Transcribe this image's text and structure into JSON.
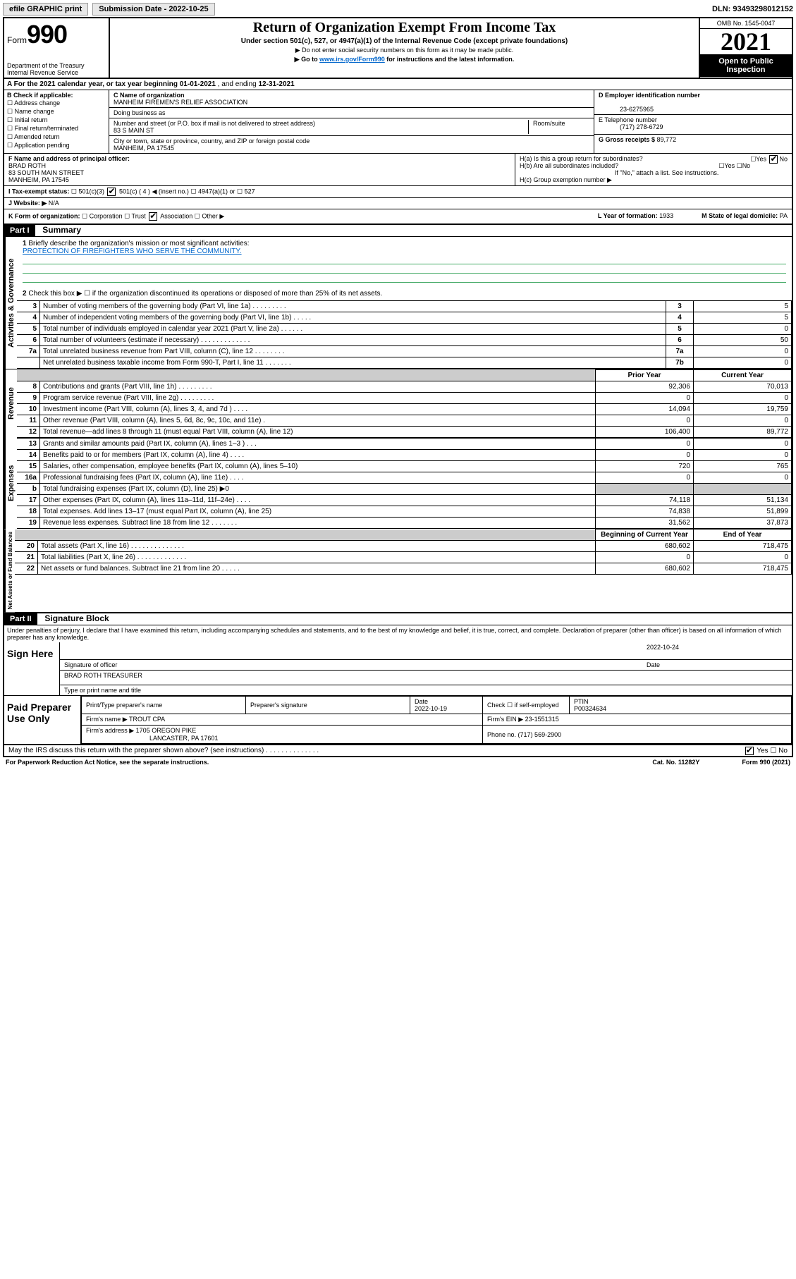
{
  "top": {
    "efile": "efile GRAPHIC print",
    "submission": "Submission Date - 2022-10-25",
    "dln": "DLN: 93493298012152"
  },
  "header": {
    "form": "Form",
    "formnum": "990",
    "dept": "Department of the Treasury",
    "irs": "Internal Revenue Service",
    "title": "Return of Organization Exempt From Income Tax",
    "sub1": "Under section 501(c), 527, or 4947(a)(1) of the Internal Revenue Code (except private foundations)",
    "sub2": "▶ Do not enter social security numbers on this form as it may be made public.",
    "sub3_pre": "▶ Go to ",
    "sub3_link": "www.irs.gov/Form990",
    "sub3_post": " for instructions and the latest information.",
    "omb": "OMB No. 1545-0047",
    "year": "2021",
    "inspection": "Open to Public Inspection"
  },
  "a": {
    "label": "A For the 2021 calendar year, or tax year beginning ",
    "begin": "01-01-2021",
    "mid": " , and ending ",
    "end": "12-31-2021"
  },
  "b": {
    "label": "B Check if applicable:",
    "opts": [
      "Address change",
      "Name change",
      "Initial return",
      "Final return/terminated",
      "Amended return",
      "Application pending"
    ]
  },
  "c": {
    "name_label": "C Name of organization",
    "name": "MANHEIM FIREMEN'S RELIEF ASSOCIATION",
    "dba": "Doing business as",
    "addr_label": "Number and street (or P.O. box if mail is not delivered to street address)",
    "room": "Room/suite",
    "addr": "83 S MAIN ST",
    "city_label": "City or town, state or province, country, and ZIP or foreign postal code",
    "city": "MANHEIM, PA  17545"
  },
  "d": {
    "label": "D Employer identification number",
    "val": "23-6275965"
  },
  "e": {
    "label": "E Telephone number",
    "val": "(717) 278-6729"
  },
  "g": {
    "label": "G Gross receipts $ ",
    "val": "89,772"
  },
  "f": {
    "label": "F Name and address of principal officer:",
    "name": "BRAD ROTH",
    "addr": "83 SOUTH MAIN STREET",
    "city": "MANHEIM, PA  17545"
  },
  "h": {
    "a": "H(a)  Is this a group return for subordinates?",
    "b": "H(b)  Are all subordinates included?",
    "note": "If \"No,\" attach a list. See instructions.",
    "c": "H(c)  Group exemption number ▶",
    "yes": "Yes",
    "no": "No"
  },
  "i": {
    "label": "I  Tax-exempt status:",
    "opts": [
      "501(c)(3)",
      "501(c) ( 4 ) ◀ (insert no.)",
      "4947(a)(1) or",
      "527"
    ]
  },
  "j": {
    "label": "J  Website: ▶",
    "val": "N/A"
  },
  "k": {
    "label": "K Form of organization:",
    "opts": [
      "Corporation",
      "Trust",
      "Association",
      "Other ▶"
    ]
  },
  "l": {
    "label": "L Year of formation: ",
    "val": "1933"
  },
  "m": {
    "label": "M State of legal domicile: ",
    "val": "PA"
  },
  "part1": {
    "header": "Part I",
    "title": "Summary",
    "side_gov": "Activities & Governance",
    "side_rev": "Revenue",
    "side_exp": "Expenses",
    "side_net": "Net Assets or Fund Balances",
    "q1": "Briefly describe the organization's mission or most significant activities:",
    "q1_ans": "PROTECTION OF FIREFIGHTERS WHO SERVE THE COMMUNITY.",
    "q2": "Check this box ▶ ☐  if the organization discontinued its operations or disposed of more than 25% of its net assets.",
    "prior": "Prior Year",
    "current": "Current Year",
    "begin": "Beginning of Current Year",
    "end": "End of Year",
    "rows_gov": [
      {
        "n": "3",
        "d": "Number of voting members of the governing body (Part VI, line 1a)  .  .  .  .  .  .  .  .  .",
        "b": "3",
        "v": "5"
      },
      {
        "n": "4",
        "d": "Number of independent voting members of the governing body (Part VI, line 1b)  .  .  .  .  .",
        "b": "4",
        "v": "5"
      },
      {
        "n": "5",
        "d": "Total number of individuals employed in calendar year 2021 (Part V, line 2a)  .  .  .  .  .  .",
        "b": "5",
        "v": "0"
      },
      {
        "n": "6",
        "d": "Total number of volunteers (estimate if necessary)  .  .  .  .  .  .  .  .  .  .  .  .  .",
        "b": "6",
        "v": "50"
      },
      {
        "n": "7a",
        "d": "Total unrelated business revenue from Part VIII, column (C), line 12  .  .  .  .  .  .  .  .",
        "b": "7a",
        "v": "0"
      },
      {
        "n": "",
        "d": "Net unrelated business taxable income from Form 990-T, Part I, line 11  .  .  .  .  .  .  .",
        "b": "7b",
        "v": "0"
      }
    ],
    "rows_rev": [
      {
        "n": "8",
        "d": "Contributions and grants (Part VIII, line 1h)  .  .  .  .  .  .  .  .  .",
        "p": "92,306",
        "c": "70,013"
      },
      {
        "n": "9",
        "d": "Program service revenue (Part VIII, line 2g)  .  .  .  .  .  .  .  .  .",
        "p": "0",
        "c": "0"
      },
      {
        "n": "10",
        "d": "Investment income (Part VIII, column (A), lines 3, 4, and 7d )  .  .  .  .",
        "p": "14,094",
        "c": "19,759"
      },
      {
        "n": "11",
        "d": "Other revenue (Part VIII, column (A), lines 5, 6d, 8c, 9c, 10c, and 11e)  .",
        "p": "0",
        "c": "0"
      },
      {
        "n": "12",
        "d": "Total revenue—add lines 8 through 11 (must equal Part VIII, column (A), line 12)",
        "p": "106,400",
        "c": "89,772"
      }
    ],
    "rows_exp": [
      {
        "n": "13",
        "d": "Grants and similar amounts paid (Part IX, column (A), lines 1–3 )  .  .  .",
        "p": "0",
        "c": "0"
      },
      {
        "n": "14",
        "d": "Benefits paid to or for members (Part IX, column (A), line 4)  .  .  .  .",
        "p": "0",
        "c": "0"
      },
      {
        "n": "15",
        "d": "Salaries, other compensation, employee benefits (Part IX, column (A), lines 5–10)",
        "p": "720",
        "c": "765"
      },
      {
        "n": "16a",
        "d": "Professional fundraising fees (Part IX, column (A), line 11e)  .  .  .  .",
        "p": "0",
        "c": "0"
      },
      {
        "n": "b",
        "d": "Total fundraising expenses (Part IX, column (D), line 25) ▶0",
        "p": "",
        "c": "",
        "shaded": true
      },
      {
        "n": "17",
        "d": "Other expenses (Part IX, column (A), lines 11a–11d, 11f–24e)  .  .  .  .",
        "p": "74,118",
        "c": "51,134"
      },
      {
        "n": "18",
        "d": "Total expenses. Add lines 13–17 (must equal Part IX, column (A), line 25)",
        "p": "74,838",
        "c": "51,899"
      },
      {
        "n": "19",
        "d": "Revenue less expenses. Subtract line 18 from line 12  .  .  .  .  .  .  .",
        "p": "31,562",
        "c": "37,873"
      }
    ],
    "rows_net": [
      {
        "n": "20",
        "d": "Total assets (Part X, line 16)  .  .  .  .  .  .  .  .  .  .  .  .  .  .",
        "p": "680,602",
        "c": "718,475"
      },
      {
        "n": "21",
        "d": "Total liabilities (Part X, line 26)  .  .  .  .  .  .  .  .  .  .  .  .  .",
        "p": "0",
        "c": "0"
      },
      {
        "n": "22",
        "d": "Net assets or fund balances. Subtract line 21 from line 20  .  .  .  .  .",
        "p": "680,602",
        "c": "718,475"
      }
    ]
  },
  "part2": {
    "header": "Part II",
    "title": "Signature Block",
    "penalty": "Under penalties of perjury, I declare that I have examined this return, including accompanying schedules and statements, and to the best of my knowledge and belief, it is true, correct, and complete. Declaration of preparer (other than officer) is based on all information of which preparer has any knowledge.",
    "sign": "Sign Here",
    "sig_officer": "Signature of officer",
    "sig_date": "Date",
    "sig_date_val": "2022-10-24",
    "officer_name": "BRAD ROTH  TREASURER",
    "type_print": "Type or print name and title",
    "paid": "Paid Preparer Use Only",
    "prep_name_label": "Print/Type preparer's name",
    "prep_sig_label": "Preparer's signature",
    "prep_date": "Date",
    "prep_date_val": "2022-10-19",
    "check_self": "Check ☐ if self-employed",
    "ptin_label": "PTIN",
    "ptin": "P00324634",
    "firm_name_label": "Firm's name    ▶",
    "firm_name": "TROUT CPA",
    "firm_ein_label": "Firm's EIN ▶",
    "firm_ein": "23-1551315",
    "firm_addr_label": "Firm's address ▶",
    "firm_addr": "1705 OREGON PIKE",
    "firm_city": "LANCASTER, PA  17601",
    "phone_label": "Phone no. ",
    "phone": "(717) 569-2900",
    "may_discuss": "May the IRS discuss this return with the preparer shown above? (see instructions)  .  .  .  .  .  .  .  .  .  .  .  .  .  ."
  },
  "footer": {
    "left": "For Paperwork Reduction Act Notice, see the separate instructions.",
    "mid": "Cat. No. 11282Y",
    "right": "Form 990 (2021)"
  }
}
